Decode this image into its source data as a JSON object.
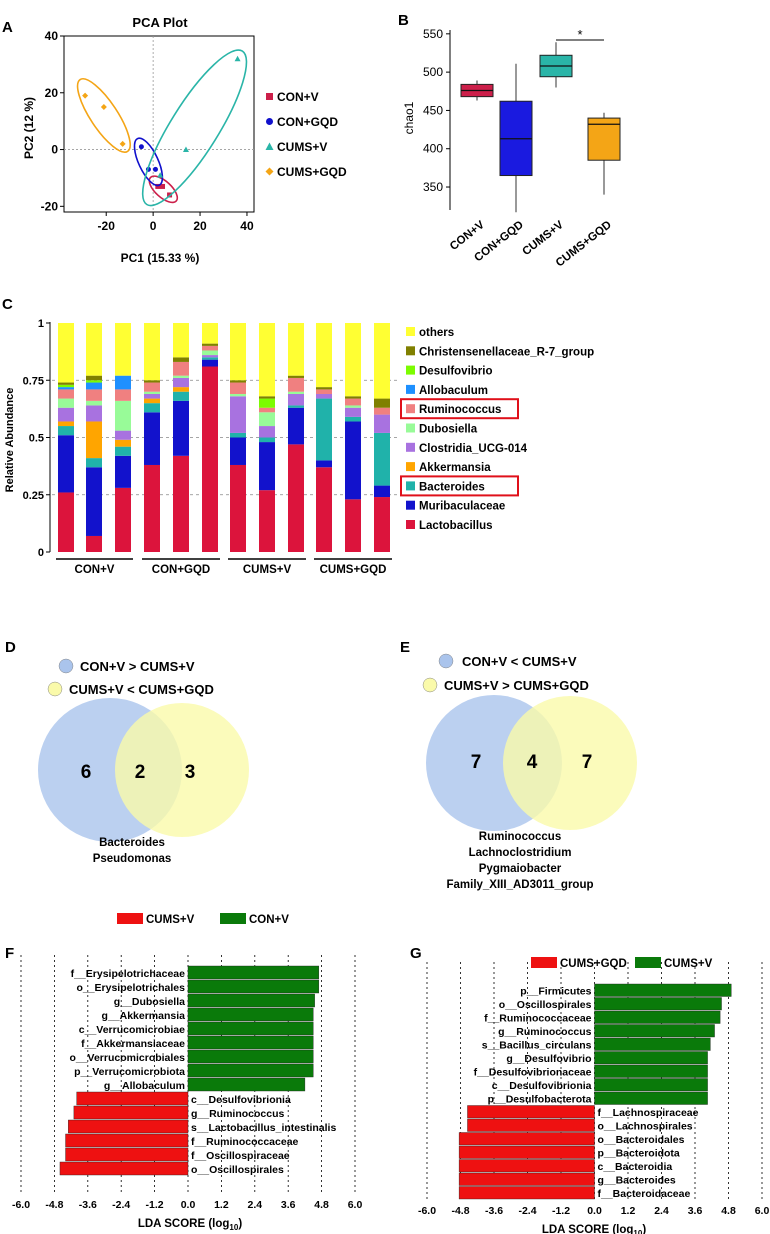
{
  "panel_letters": {
    "A": "A",
    "B": "B",
    "C": "C",
    "D": "D",
    "E": "E",
    "F": "F",
    "G": "G"
  },
  "chart_data": [
    {
      "panel": "A",
      "type": "scatter",
      "title": "PCA Plot",
      "xlabel": "PC1  (15.33 %)",
      "ylabel": "PC2  (12 %)",
      "xlim": [
        -38,
        43
      ],
      "ylim": [
        -22,
        40
      ],
      "xticks": [
        -20,
        0,
        20,
        40
      ],
      "yticks": [
        -20,
        0,
        20,
        40
      ],
      "legend_position": "right",
      "series": [
        {
          "name": "CON+V",
          "color": "#cc1f4a",
          "marker": "square",
          "points": [
            [
              2,
              -13
            ],
            [
              4,
              -13
            ],
            [
              7,
              -16
            ]
          ]
        },
        {
          "name": "CON+GQD",
          "color": "#1010cc",
          "marker": "circle",
          "points": [
            [
              -5,
              1
            ],
            [
              -2,
              -7
            ],
            [
              1,
              -7
            ]
          ]
        },
        {
          "name": "CUMS+V",
          "color": "#2ab5a8",
          "marker": "triangle",
          "points": [
            [
              36,
              32
            ],
            [
              14,
              0
            ],
            [
              3,
              -9
            ]
          ]
        },
        {
          "name": "CUMS+GQD",
          "color": "#f4a516",
          "marker": "diamond",
          "points": [
            [
              -29,
              19
            ],
            [
              -21,
              15
            ],
            [
              -13,
              2
            ]
          ]
        }
      ]
    },
    {
      "panel": "B",
      "type": "box",
      "ylabel": "chao1",
      "ylim": [
        320,
        555
      ],
      "yticks": [
        350,
        400,
        450,
        500,
        550
      ],
      "categories": [
        "CON+V",
        "CON+GQD",
        "CUMS+V",
        "CUMS+GQD"
      ],
      "colors": [
        "#cc1f4a",
        "#1a1ae0",
        "#2ab5a8",
        "#f4a516"
      ],
      "boxes": [
        {
          "min": 463,
          "q1": 468,
          "median": 476,
          "q3": 484,
          "max": 489
        },
        {
          "min": 317,
          "q1": 365,
          "median": 413,
          "q3": 462,
          "max": 511
        },
        {
          "min": 480,
          "q1": 494,
          "median": 508,
          "q3": 522,
          "max": 539
        },
        {
          "min": 340,
          "q1": 385,
          "median": 432,
          "q3": 440,
          "max": 447
        }
      ],
      "significance": {
        "label": "*",
        "from": "CUMS+V",
        "to": "CUMS+GQD"
      }
    },
    {
      "panel": "C",
      "type": "stacked-bar",
      "ylabel": "Relative Abundance",
      "ylim": [
        0,
        1
      ],
      "yticks": [
        "0",
        "0.25",
        "0.5",
        "0.75",
        "1"
      ],
      "groups": [
        "CON+V",
        "CON+GQD",
        "CUMS+V",
        "CUMS+GQD"
      ],
      "bars_per_group": 3,
      "highlighted_taxa": [
        "Ruminococcus",
        "Bacteroides"
      ],
      "taxa": [
        {
          "name": "Lactobacillus",
          "color": "#dc143c"
        },
        {
          "name": "Muribaculaceae",
          "color": "#1212cc"
        },
        {
          "name": "Bacteroides",
          "color": "#20b2aa"
        },
        {
          "name": "Akkermansia",
          "color": "#ffa500"
        },
        {
          "name": "Clostridia_UCG-014",
          "color": "#a872e0"
        },
        {
          "name": "Dubosiella",
          "color": "#98fb98"
        },
        {
          "name": "Ruminococcus",
          "color": "#f08080"
        },
        {
          "name": "Allobaculum",
          "color": "#1e90ff"
        },
        {
          "name": "Desulfovibrio",
          "color": "#7cfc00"
        },
        {
          "name": "Christensenellaceae_R-7_group",
          "color": "#808000"
        },
        {
          "name": "others",
          "color": "#ffff33"
        }
      ],
      "samples": [
        [
          0.26,
          0.25,
          0.04,
          0.02,
          0.06,
          0.04,
          0.04,
          0.01,
          0.01,
          0.01,
          0.26
        ],
        [
          0.07,
          0.3,
          0.04,
          0.16,
          0.07,
          0.02,
          0.05,
          0.03,
          0.01,
          0.02,
          0.23
        ],
        [
          0.28,
          0.14,
          0.04,
          0.03,
          0.04,
          0.13,
          0.05,
          0.06,
          0.0,
          0.0,
          0.23
        ],
        [
          0.38,
          0.23,
          0.04,
          0.02,
          0.02,
          0.01,
          0.04,
          0.0,
          0.0,
          0.01,
          0.25
        ],
        [
          0.42,
          0.24,
          0.04,
          0.02,
          0.04,
          0.01,
          0.06,
          0.0,
          0.0,
          0.02,
          0.15
        ],
        [
          0.81,
          0.03,
          0.01,
          0.0,
          0.01,
          0.02,
          0.02,
          0.0,
          0.0,
          0.01,
          0.09
        ],
        [
          0.38,
          0.12,
          0.02,
          0.0,
          0.16,
          0.01,
          0.05,
          0.0,
          0.0,
          0.01,
          0.25
        ],
        [
          0.27,
          0.21,
          0.02,
          0.0,
          0.05,
          0.06,
          0.02,
          0.0,
          0.04,
          0.01,
          0.32
        ],
        [
          0.47,
          0.16,
          0.01,
          0.0,
          0.05,
          0.01,
          0.06,
          0.0,
          0.0,
          0.01,
          0.23
        ],
        [
          0.37,
          0.03,
          0.27,
          0.0,
          0.02,
          0.0,
          0.02,
          0.0,
          0.0,
          0.01,
          0.28
        ],
        [
          0.23,
          0.34,
          0.02,
          0.0,
          0.04,
          0.01,
          0.03,
          0.0,
          0.0,
          0.01,
          0.32
        ],
        [
          0.24,
          0.05,
          0.23,
          0.0,
          0.08,
          0.0,
          0.03,
          0.0,
          0.0,
          0.04,
          0.33
        ]
      ]
    },
    {
      "panel": "D",
      "type": "venn",
      "sets": [
        {
          "label": "CON+V > CUMS+V",
          "color": "#aac4ec",
          "only": "6"
        },
        {
          "label": "CUMS+V < CUMS+GQD",
          "color": "#fafaaa",
          "only": "3"
        }
      ],
      "intersection": "2",
      "intersection_members": [
        "Bacteroides",
        "Pseudomonas"
      ]
    },
    {
      "panel": "E",
      "type": "venn",
      "sets": [
        {
          "label": "CON+V < CUMS+V",
          "color": "#aac4ec",
          "only": "7"
        },
        {
          "label": "CUMS+V > CUMS+GQD",
          "color": "#fafaaa",
          "only": "7"
        }
      ],
      "intersection": "4",
      "intersection_members": [
        "Ruminococcus",
        "Lachnoclostridium",
        "Pygmaiobacter",
        "Family_XIII_AD3011_group"
      ]
    },
    {
      "panel": "F",
      "type": "bar-horizontal",
      "xlabel": "LDA SCORE  (log",
      "xlabel_sub": "10",
      "xlabel_close": ")",
      "xlim": [
        -6.0,
        6.0
      ],
      "xticks": [
        "-6.0",
        "-4.8",
        "-3.6",
        "-2.4",
        "-1.2",
        "0.0",
        "1.2",
        "2.4",
        "3.6",
        "4.8",
        "6.0"
      ],
      "legend": [
        {
          "name": "CUMS+V",
          "color": "#ee1111"
        },
        {
          "name": "CON+V",
          "color": "#0a7a0a"
        }
      ],
      "bars": [
        {
          "label": "f__Erysipelotrichaceae",
          "value": 4.7
        },
        {
          "label": "o__Erysipelotrichales",
          "value": 4.7
        },
        {
          "label": "g__Dubosiella",
          "value": 4.55
        },
        {
          "label": "g__Akkermansia",
          "value": 4.5
        },
        {
          "label": "c__Verrucomicrobiae",
          "value": 4.5
        },
        {
          "label": "f__Akkermansiaceae",
          "value": 4.5
        },
        {
          "label": "o__Verrucomicrobiales",
          "value": 4.5
        },
        {
          "label": "p__Verrucomicrobiota",
          "value": 4.5
        },
        {
          "label": "g__Allobaculum",
          "value": 4.2
        },
        {
          "label": "c__Desulfovibrionia",
          "value": -4.0
        },
        {
          "label": "g__Ruminococcus",
          "value": -4.1
        },
        {
          "label": "s__Lactobacillus_intestinalis",
          "value": -4.3
        },
        {
          "label": "f__Ruminococcaceae",
          "value": -4.4
        },
        {
          "label": "f__Oscillospiraceae",
          "value": -4.4
        },
        {
          "label": "o__Oscillospirales",
          "value": -4.6
        }
      ]
    },
    {
      "panel": "G",
      "type": "bar-horizontal",
      "xlabel": "LDA SCORE  (log",
      "xlabel_sub": "10",
      "xlabel_close": ")",
      "xlim": [
        -6.0,
        6.0
      ],
      "xticks": [
        "-6.0",
        "-4.8",
        "-3.6",
        "-2.4",
        "-1.2",
        "0.0",
        "1.2",
        "2.4",
        "3.6",
        "4.8",
        "6.0"
      ],
      "legend": [
        {
          "name": "CUMS+GQD",
          "color": "#ee1111"
        },
        {
          "name": "CUMS+V",
          "color": "#0a7a0a"
        }
      ],
      "bars": [
        {
          "label": "p__Firmicutes",
          "value": 4.9
        },
        {
          "label": "o__Oscillospirales",
          "value": 4.55
        },
        {
          "label": "f__Ruminococcaceae",
          "value": 4.5
        },
        {
          "label": "g__Ruminococcus",
          "value": 4.3
        },
        {
          "label": "s__Bacillus_circulans",
          "value": 4.15
        },
        {
          "label": "g__Desulfovibrio",
          "value": 4.05
        },
        {
          "label": "f__Desulfovibrionaceae",
          "value": 4.05
        },
        {
          "label": "c__Desulfovibrionia",
          "value": 4.05
        },
        {
          "label": "p__Desulfobacterota",
          "value": 4.05
        },
        {
          "label": "f__Lachnospiraceae",
          "value": -4.55
        },
        {
          "label": "o__Lachnospirales",
          "value": -4.55
        },
        {
          "label": "o__Bacteroidales",
          "value": -4.85
        },
        {
          "label": "p__Bacteroidota",
          "value": -4.85
        },
        {
          "label": "c__Bacteroidia",
          "value": -4.85
        },
        {
          "label": "g__Bacteroides",
          "value": -4.85
        },
        {
          "label": "f__Bacteroidaceae",
          "value": -4.85
        }
      ]
    }
  ]
}
